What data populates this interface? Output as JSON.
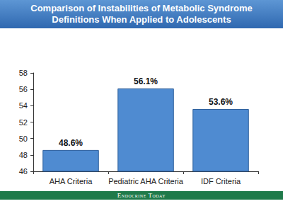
{
  "chart_data": {
    "type": "bar",
    "title": "Comparison of Instabilities of Metabolic Syndrome Definitions When Applied to Adolescents",
    "annotations": [
      "Endocrine Today"
    ],
    "categories": [
      "AHA Criteria",
      "Pediatric AHA Criteria",
      "IDF Criteria"
    ],
    "values": [
      48.6,
      56.1,
      53.6
    ],
    "value_labels": [
      "48.6%",
      "56.1%",
      "53.6%"
    ],
    "data_labels": true,
    "color": "#4f8bd1",
    "ylim": [
      46,
      58
    ],
    "yticks": [
      46,
      48,
      50,
      52,
      54,
      56,
      58
    ],
    "grid": false
  }
}
